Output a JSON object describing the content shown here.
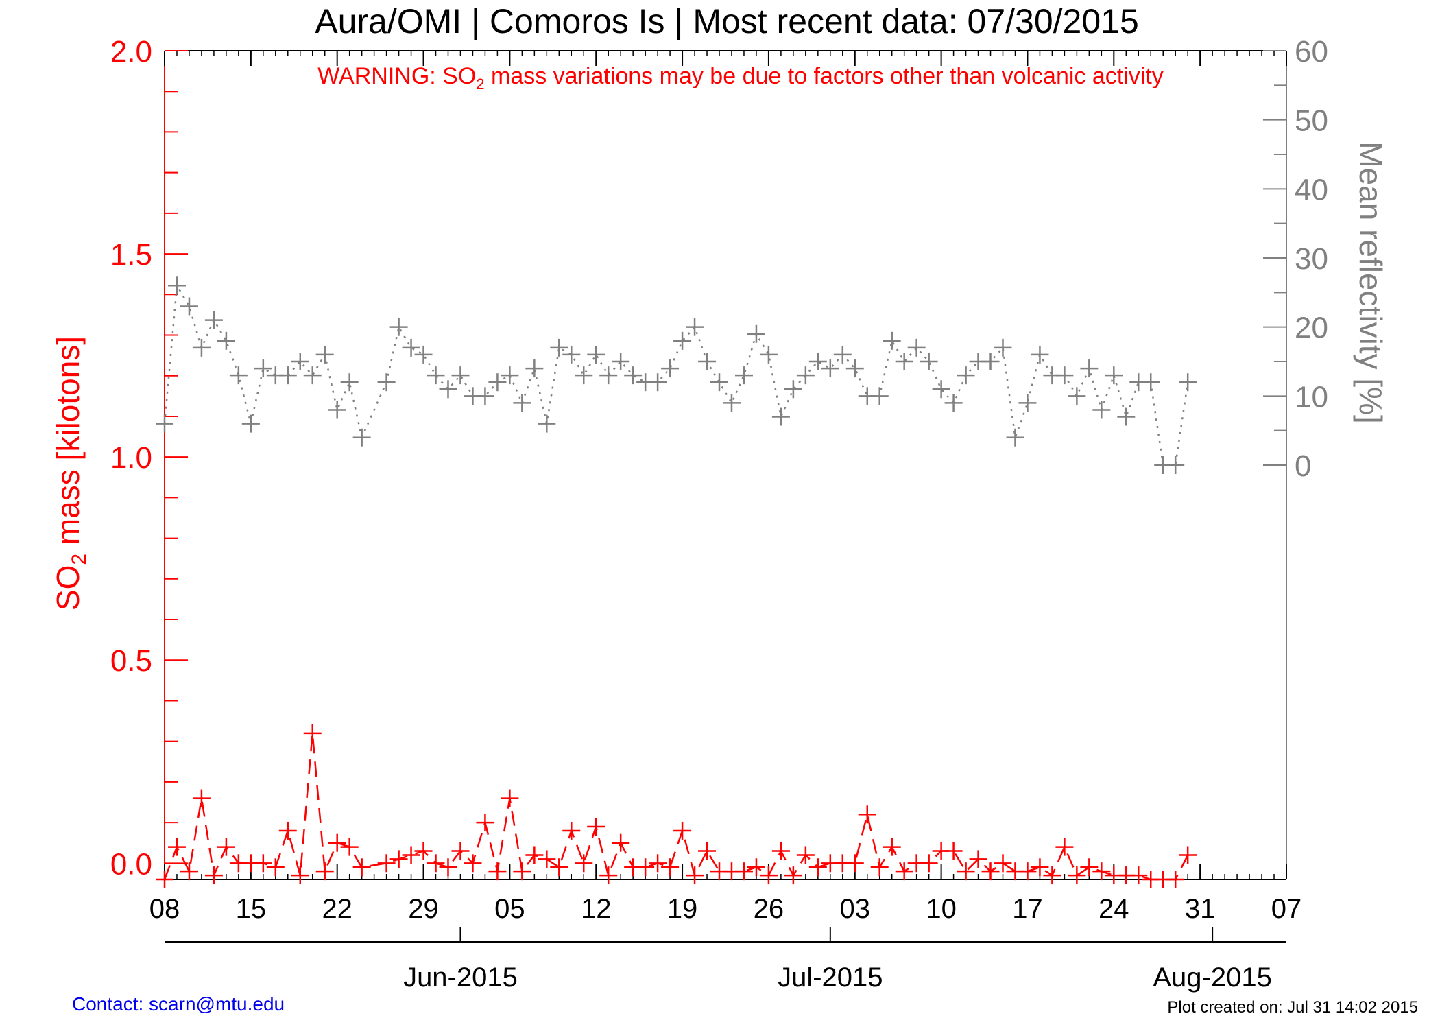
{
  "chart_data": {
    "type": "line",
    "title": "Aura/OMI | Comoros Is | Most recent data: 07/30/2015",
    "warning": {
      "prefix": "WARNING: SO",
      "subscript": "2",
      "suffix": " mass variations may be due to factors other than volcanic activity"
    },
    "ylabel_left": {
      "prefix": "SO",
      "subscript": "2",
      "suffix": " mass [kilotons]"
    },
    "ylabel_right": "Mean reflectivity [%]",
    "x_range": [
      "2015-05-08",
      "2015-08-07"
    ],
    "y_left_range": [
      -0.04,
      2.0
    ],
    "y_right_range": [
      -60,
      60
    ],
    "y_left_ticks": [
      "0.0",
      "0.5",
      "1.0",
      "1.5",
      "2.0"
    ],
    "y_right_ticks": [
      "0",
      "10",
      "20",
      "30",
      "40",
      "50",
      "60"
    ],
    "x_ticks": [
      {
        "date": "2015-05-08",
        "label": "08"
      },
      {
        "date": "2015-05-15",
        "label": "15"
      },
      {
        "date": "2015-05-22",
        "label": "22"
      },
      {
        "date": "2015-05-29",
        "label": "29"
      },
      {
        "date": "2015-06-05",
        "label": "05"
      },
      {
        "date": "2015-06-12",
        "label": "12"
      },
      {
        "date": "2015-06-19",
        "label": "19"
      },
      {
        "date": "2015-06-26",
        "label": "26"
      },
      {
        "date": "2015-07-03",
        "label": "03"
      },
      {
        "date": "2015-07-10",
        "label": "10"
      },
      {
        "date": "2015-07-17",
        "label": "17"
      },
      {
        "date": "2015-07-24",
        "label": "24"
      },
      {
        "date": "2015-07-31",
        "label": "31"
      },
      {
        "date": "2015-08-07",
        "label": "07"
      }
    ],
    "month_labels": [
      {
        "date": "2015-06-01",
        "label": "Jun-2015"
      },
      {
        "date": "2015-07-01",
        "label": "Jul-2015"
      },
      {
        "date": "2015-08-01",
        "label": "Aug-2015"
      }
    ],
    "series": [
      {
        "axis": "left",
        "color": "#ff0000",
        "style": "dashed",
        "x": [
          "2015-05-08",
          "2015-05-09",
          "2015-05-10",
          "2015-05-11",
          "2015-05-12",
          "2015-05-13",
          "2015-05-14",
          "2015-05-15",
          "2015-05-16",
          "2015-05-17",
          "2015-05-18",
          "2015-05-19",
          "2015-05-20",
          "2015-05-21",
          "2015-05-22",
          "2015-05-23",
          "2015-05-24",
          "2015-05-26",
          "2015-05-27",
          "2015-05-28",
          "2015-05-29",
          "2015-05-30",
          "2015-05-31",
          "2015-06-01",
          "2015-06-02",
          "2015-06-03",
          "2015-06-04",
          "2015-06-05",
          "2015-06-06",
          "2015-06-07",
          "2015-06-08",
          "2015-06-09",
          "2015-06-10",
          "2015-06-11",
          "2015-06-12",
          "2015-06-13",
          "2015-06-14",
          "2015-06-15",
          "2015-06-16",
          "2015-06-17",
          "2015-06-18",
          "2015-06-19",
          "2015-06-20",
          "2015-06-21",
          "2015-06-22",
          "2015-06-23",
          "2015-06-24",
          "2015-06-25",
          "2015-06-26",
          "2015-06-27",
          "2015-06-28",
          "2015-06-29",
          "2015-06-30",
          "2015-07-01",
          "2015-07-02",
          "2015-07-03",
          "2015-07-04",
          "2015-07-05",
          "2015-07-06",
          "2015-07-07",
          "2015-07-08",
          "2015-07-09",
          "2015-07-10",
          "2015-07-11",
          "2015-07-12",
          "2015-07-13",
          "2015-07-14",
          "2015-07-15",
          "2015-07-16",
          "2015-07-17",
          "2015-07-18",
          "2015-07-19",
          "2015-07-20",
          "2015-07-21",
          "2015-07-22",
          "2015-07-23",
          "2015-07-24",
          "2015-07-25",
          "2015-07-26",
          "2015-07-27",
          "2015-07-28",
          "2015-07-29",
          "2015-07-30"
        ],
        "values": [
          -0.04,
          0.04,
          -0.02,
          0.16,
          -0.03,
          0.04,
          0.0,
          0.0,
          0.0,
          -0.01,
          0.08,
          -0.03,
          0.32,
          -0.02,
          0.05,
          0.04,
          -0.01,
          0.0,
          0.01,
          0.02,
          0.03,
          0.0,
          -0.01,
          0.03,
          0.0,
          0.1,
          -0.02,
          0.16,
          -0.02,
          0.02,
          0.01,
          -0.01,
          0.08,
          0.0,
          0.09,
          -0.03,
          0.05,
          -0.01,
          -0.01,
          0.0,
          -0.01,
          0.08,
          -0.03,
          0.03,
          -0.02,
          -0.02,
          -0.02,
          -0.01,
          -0.03,
          0.03,
          -0.03,
          0.02,
          -0.01,
          0.0,
          0.0,
          0.0,
          0.12,
          -0.01,
          0.04,
          -0.02,
          0.0,
          0.0,
          0.03,
          0.03,
          -0.02,
          0.01,
          -0.02,
          0.0,
          -0.02,
          -0.02,
          -0.01,
          -0.03,
          0.04,
          -0.03,
          -0.01,
          -0.02,
          -0.03,
          -0.03,
          -0.03,
          -0.04,
          -0.04,
          -0.04,
          0.02
        ]
      },
      {
        "axis": "right",
        "color": "#808080",
        "style": "dotted",
        "x": [
          "2015-05-08",
          "2015-05-09",
          "2015-05-10",
          "2015-05-11",
          "2015-05-12",
          "2015-05-13",
          "2015-05-14",
          "2015-05-15",
          "2015-05-16",
          "2015-05-17",
          "2015-05-18",
          "2015-05-19",
          "2015-05-20",
          "2015-05-21",
          "2015-05-22",
          "2015-05-23",
          "2015-05-24",
          "2015-05-26",
          "2015-05-27",
          "2015-05-28",
          "2015-05-29",
          "2015-05-30",
          "2015-05-31",
          "2015-06-01",
          "2015-06-02",
          "2015-06-03",
          "2015-06-04",
          "2015-06-05",
          "2015-06-06",
          "2015-06-07",
          "2015-06-08",
          "2015-06-09",
          "2015-06-10",
          "2015-06-11",
          "2015-06-12",
          "2015-06-13",
          "2015-06-14",
          "2015-06-15",
          "2015-06-16",
          "2015-06-17",
          "2015-06-18",
          "2015-06-19",
          "2015-06-20",
          "2015-06-21",
          "2015-06-22",
          "2015-06-23",
          "2015-06-24",
          "2015-06-25",
          "2015-06-26",
          "2015-06-27",
          "2015-06-28",
          "2015-06-29",
          "2015-06-30",
          "2015-07-01",
          "2015-07-02",
          "2015-07-03",
          "2015-07-04",
          "2015-07-05",
          "2015-07-06",
          "2015-07-07",
          "2015-07-08",
          "2015-07-09",
          "2015-07-10",
          "2015-07-11",
          "2015-07-12",
          "2015-07-13",
          "2015-07-14",
          "2015-07-15",
          "2015-07-16",
          "2015-07-17",
          "2015-07-18",
          "2015-07-19",
          "2015-07-20",
          "2015-07-21",
          "2015-07-22",
          "2015-07-23",
          "2015-07-24",
          "2015-07-25",
          "2015-07-26",
          "2015-07-27",
          "2015-07-28",
          "2015-07-29",
          "2015-07-30"
        ],
        "values": [
          6,
          26,
          23,
          17,
          21,
          18,
          13,
          6,
          14,
          13,
          13,
          15,
          13,
          16,
          8,
          12,
          4,
          12,
          20,
          17,
          16,
          13,
          11,
          13,
          10,
          10,
          12,
          13,
          9,
          14,
          6,
          17,
          16,
          13,
          16,
          13,
          15,
          13,
          12,
          12,
          14,
          18,
          20,
          15,
          12,
          9,
          13,
          19,
          16,
          7,
          11,
          13,
          15,
          14,
          16,
          14,
          10,
          10,
          18,
          15,
          17,
          15,
          11,
          9,
          13,
          15,
          15,
          17,
          4,
          9,
          16,
          13,
          13,
          10,
          14,
          8,
          13,
          7,
          12,
          12,
          0,
          0,
          12
        ]
      }
    ]
  },
  "footer": {
    "contact": "Contact: scarn@mtu.edu",
    "created": "Plot created on: Jul 31 14:02 2015"
  }
}
